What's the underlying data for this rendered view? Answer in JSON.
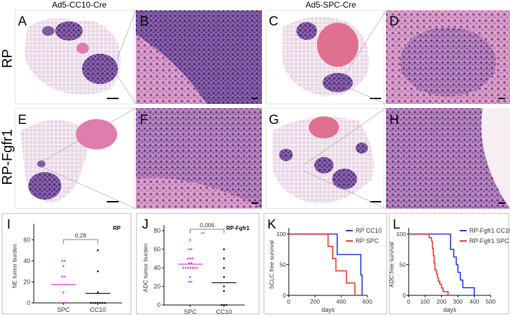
{
  "columns": {
    "left": "Ad5-CC10-Cre",
    "right": "Ad5-SPC-Cre"
  },
  "rows": {
    "top": "RP",
    "bottom": "RP-Fgfr1"
  },
  "panels": {
    "A": "A",
    "B": "B",
    "C": "C",
    "D": "D",
    "E": "E",
    "F": "F",
    "G": "G",
    "H": "H",
    "I": "I",
    "J": "J",
    "K": "K",
    "L": "L"
  },
  "colors": {
    "magenta": "#e040d0",
    "black": "#111111",
    "blue": "#2233dd",
    "red": "#ee3322",
    "tissue_pink": "#e7a6c8",
    "tissue_purple": "#6a4e9a"
  },
  "chart_data": [
    {
      "id": "I",
      "type": "scatter",
      "title": "RP",
      "ylabel": "NE tumor burden",
      "categories": [
        "SPC",
        "CC10"
      ],
      "ylim": [
        0,
        70
      ],
      "yticks": [
        "0",
        "20",
        "40",
        "60"
      ],
      "series": [
        {
          "name": "SPC",
          "color": "#e040d0",
          "values": [
            40,
            40,
            35,
            25,
            25,
            10,
            0,
            0,
            0,
            0
          ],
          "mean": 17.5
        },
        {
          "name": "CC10",
          "color": "#111111",
          "values": [
            50,
            30,
            10,
            0,
            0,
            0,
            0,
            0,
            0,
            0
          ],
          "mean": 9
        }
      ],
      "annotation": {
        "p_value": "0,28",
        "stars": ""
      }
    },
    {
      "id": "J",
      "type": "scatter",
      "title": "RP-Fgfr1",
      "ylabel": "ADC tumor burden",
      "categories": [
        "SPC",
        "CC10"
      ],
      "ylim": [
        0,
        80
      ],
      "yticks": [
        "0",
        "20",
        "40",
        "60",
        "80"
      ],
      "series": [
        {
          "name": "SPC",
          "color": "#e040d0",
          "values": [
            70,
            60,
            60,
            50,
            50,
            50,
            45,
            45,
            40,
            40,
            40,
            40,
            40,
            40,
            40,
            30,
            25,
            25
          ],
          "mean": 44
        },
        {
          "name": "CC10",
          "color": "#111111",
          "values": [
            60,
            50,
            40,
            30,
            20,
            15,
            0,
            0,
            0
          ],
          "mean": 24
        }
      ],
      "annotation": {
        "p_value": "0,006",
        "stars": "**"
      }
    },
    {
      "id": "K",
      "type": "line",
      "xlabel": "days",
      "ylabel": "SCLC free survival",
      "xlim": [
        0,
        600
      ],
      "ylim": [
        0,
        100
      ],
      "xticks": [
        "0",
        "200",
        "400",
        "600"
      ],
      "yticks": [
        "0",
        "50",
        "100"
      ],
      "series": [
        {
          "name": "RP CC10",
          "color": "#2233dd",
          "steps": [
            [
              0,
              100
            ],
            [
              370,
              66.7
            ],
            [
              550,
              33.3
            ],
            [
              560,
              0
            ]
          ]
        },
        {
          "name": "RP SPC",
          "color": "#ee3322",
          "steps": [
            [
              0,
              100
            ],
            [
              300,
              80
            ],
            [
              335,
              60
            ],
            [
              360,
              40
            ],
            [
              440,
              20
            ],
            [
              505,
              0
            ]
          ]
        }
      ]
    },
    {
      "id": "L",
      "type": "line",
      "xlabel": "days",
      "ylabel": "ADC free survival",
      "xlim": [
        0,
        500
      ],
      "ylim": [
        0,
        100
      ],
      "xticks": [
        "0",
        "100",
        "200",
        "300",
        "400",
        "500"
      ],
      "yticks": [
        "0",
        "50",
        "100"
      ],
      "series": [
        {
          "name": "RP-Fgfr1 CC10",
          "color": "#2233dd",
          "steps": [
            [
              0,
              100
            ],
            [
              255,
              75
            ],
            [
              275,
              62.5
            ],
            [
              290,
              50
            ],
            [
              300,
              37.5
            ],
            [
              315,
              25
            ],
            [
              330,
              12.5
            ],
            [
              400,
              0
            ]
          ]
        },
        {
          "name": "RP-Fgfr1 SPC",
          "color": "#ee3322",
          "steps": [
            [
              0,
              100
            ],
            [
              125,
              94
            ],
            [
              140,
              88
            ],
            [
              145,
              76
            ],
            [
              150,
              65
            ],
            [
              155,
              53
            ],
            [
              160,
              41
            ],
            [
              170,
              35
            ],
            [
              175,
              29
            ],
            [
              180,
              23
            ],
            [
              190,
              18
            ],
            [
              200,
              12
            ],
            [
              210,
              6
            ],
            [
              240,
              0
            ]
          ]
        }
      ]
    }
  ]
}
